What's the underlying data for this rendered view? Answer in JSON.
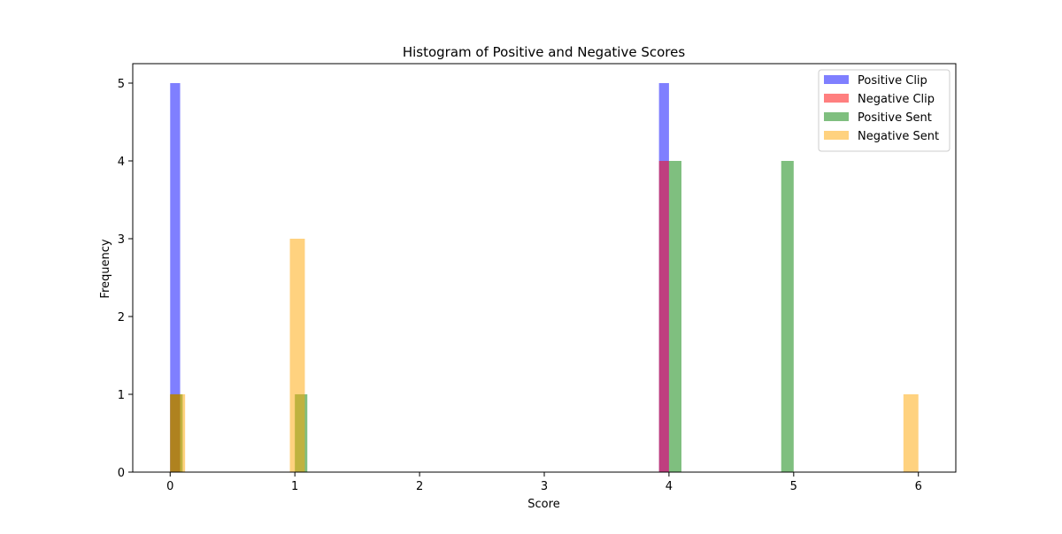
{
  "chart_data": {
    "type": "bar",
    "title": "Histogram of Positive and Negative Scores",
    "xlabel": "Score",
    "ylabel": "Frequency",
    "xlim": [
      -0.3,
      6.3
    ],
    "ylim": [
      0,
      5.25
    ],
    "xticks": [
      0,
      1,
      2,
      3,
      4,
      5,
      6
    ],
    "yticks": [
      0,
      1,
      2,
      3,
      4,
      5
    ],
    "grid": false,
    "legend_position": "top-right",
    "series": [
      {
        "name": "Positive Clip",
        "color": "#0000ff",
        "opacity": 0.5,
        "bars": [
          {
            "x0": 0.0,
            "x1": 0.08,
            "value": 5
          },
          {
            "x0": 3.92,
            "x1": 4.0,
            "value": 5
          }
        ]
      },
      {
        "name": "Negative Clip",
        "color": "#ff0000",
        "opacity": 0.5,
        "bars": [
          {
            "x0": 0.0,
            "x1": 0.08,
            "value": 1
          },
          {
            "x0": 3.92,
            "x1": 4.0,
            "value": 4
          }
        ]
      },
      {
        "name": "Positive Sent",
        "color": "#008000",
        "opacity": 0.5,
        "bars": [
          {
            "x0": 0.0,
            "x1": 0.1,
            "value": 1
          },
          {
            "x0": 1.0,
            "x1": 1.1,
            "value": 1
          },
          {
            "x0": 4.0,
            "x1": 4.1,
            "value": 4
          },
          {
            "x0": 4.9,
            "x1": 5.0,
            "value": 4
          }
        ]
      },
      {
        "name": "Negative Sent",
        "color": "#ffa500",
        "opacity": 0.5,
        "bars": [
          {
            "x0": 0.0,
            "x1": 0.12,
            "value": 1
          },
          {
            "x0": 0.96,
            "x1": 1.08,
            "value": 3
          },
          {
            "x0": 5.88,
            "x1": 6.0,
            "value": 1
          }
        ]
      }
    ]
  }
}
